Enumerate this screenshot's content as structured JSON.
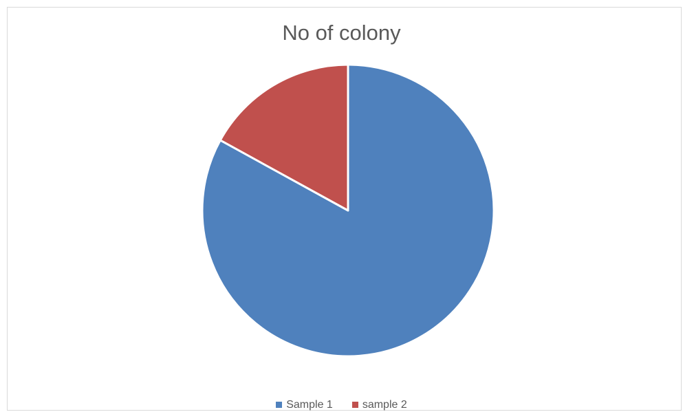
{
  "chart_data": {
    "type": "pie",
    "title": "No of colony",
    "categories": [
      "Sample 1",
      "sample 2"
    ],
    "values": [
      83,
      17
    ],
    "colors": [
      "#4f81bd",
      "#c0504d"
    ],
    "legend_position": "bottom"
  }
}
